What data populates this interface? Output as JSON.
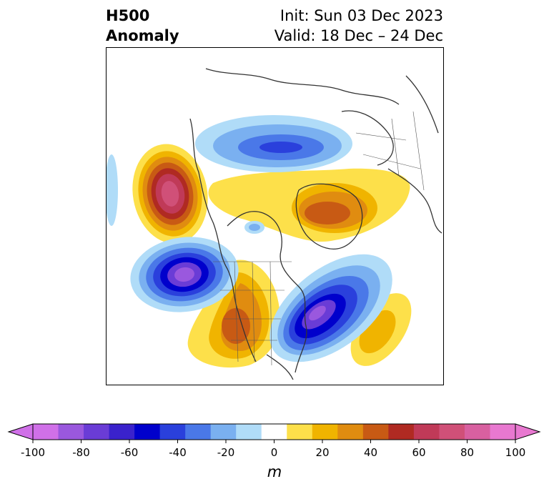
{
  "title": {
    "left_line1": "H500",
    "left_line2": "Anomaly",
    "right_line1": "Init: Sun 03 Dec 2023",
    "right_line2": "Valid: 18 Dec – 24 Dec"
  },
  "colorbar": {
    "label": "m",
    "ticks": [
      "-100",
      "-80",
      "-60",
      "-40",
      "-20",
      "0",
      "20",
      "40",
      "60",
      "80",
      "100"
    ],
    "levels": [
      -100,
      -90,
      -80,
      -70,
      -60,
      -50,
      -40,
      -30,
      -20,
      -10,
      10,
      20,
      30,
      40,
      50,
      60,
      70,
      80,
      90,
      100
    ],
    "colors": [
      "#d070e8",
      "#9a58de",
      "#6a3cd6",
      "#3a22cc",
      "#0000cc",
      "#2a40dc",
      "#4a78e8",
      "#7ab0f0",
      "#b0dcf8",
      "#ffffff",
      "#fde04a",
      "#f0b400",
      "#e08c10",
      "#c85a14",
      "#b02a22",
      "#c03a58",
      "#d05078",
      "#d860a0",
      "#e878d0"
    ],
    "under_color": "#d070e8",
    "over_color": "#e878d0"
  }
}
